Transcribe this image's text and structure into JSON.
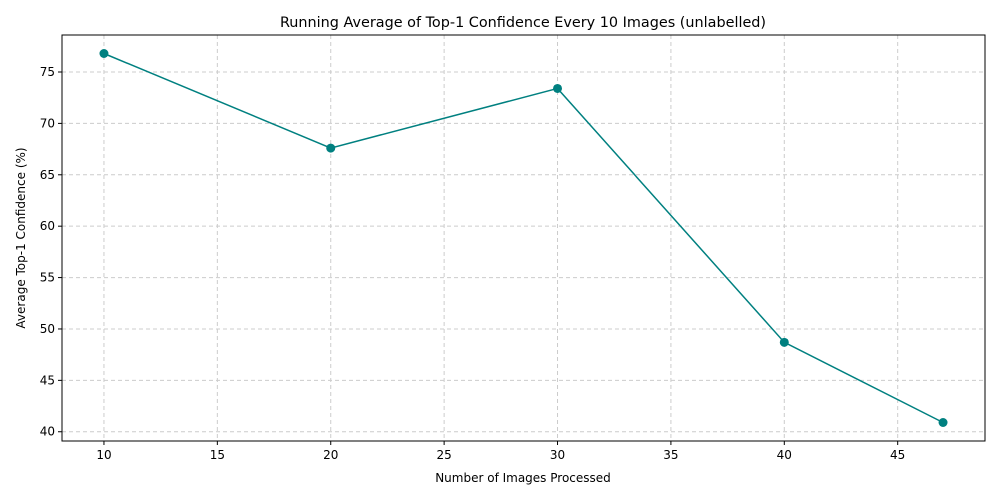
{
  "chart_data": {
    "type": "line",
    "title": "Running Average of Top-1 Confidence Every 10 Images (unlabelled)",
    "xlabel": "Number of Images Processed",
    "ylabel": "Average Top-1 Confidence (%)",
    "xlim": [
      8.15,
      48.85
    ],
    "ylim": [
      39.1,
      78.6
    ],
    "xticks": [
      10,
      15,
      20,
      25,
      30,
      35,
      40,
      45
    ],
    "yticks": [
      40,
      45,
      50,
      55,
      60,
      65,
      70,
      75
    ],
    "grid": true,
    "series": [
      {
        "color": "#008080",
        "marker": "circle",
        "x": [
          10,
          20,
          30,
          40,
          47
        ],
        "values": [
          76.8,
          67.6,
          73.4,
          48.7,
          40.9
        ]
      }
    ]
  }
}
